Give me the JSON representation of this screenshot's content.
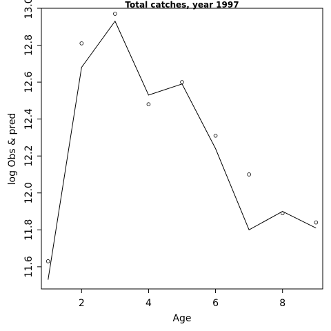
{
  "chart_data": {
    "type": "line",
    "title": "Total catches, year 1997",
    "xlabel": "Age",
    "ylabel": "log Obs & pred",
    "xlim": [
      0.8,
      9.2
    ],
    "ylim": [
      11.48,
      13.0
    ],
    "x_ticks": [
      2,
      4,
      6,
      8
    ],
    "y_ticks": [
      11.6,
      11.8,
      12.0,
      12.2,
      12.4,
      12.6,
      12.8,
      13.0
    ],
    "grid": false,
    "series": [
      {
        "render": "points",
        "x": [
          1,
          2,
          3,
          4,
          5,
          6,
          7,
          8,
          9
        ],
        "y": [
          11.63,
          12.81,
          12.97,
          12.48,
          12.6,
          12.31,
          12.1,
          11.89,
          11.84
        ]
      },
      {
        "render": "line",
        "x": [
          1,
          2,
          3,
          4,
          5,
          6,
          7,
          8,
          9
        ],
        "y": [
          11.53,
          12.68,
          12.93,
          12.53,
          12.59,
          12.24,
          11.8,
          11.9,
          11.81
        ]
      }
    ]
  }
}
